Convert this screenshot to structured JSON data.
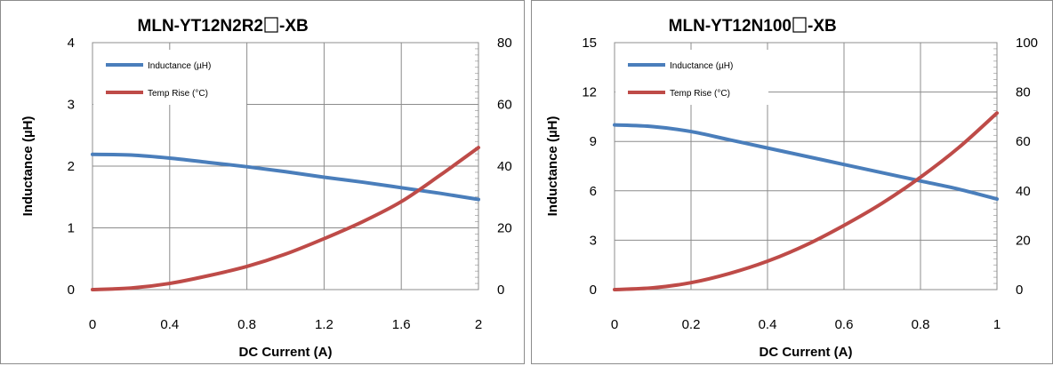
{
  "chart_data": [
    {
      "type": "line",
      "title_prefix": "MLN-YT12N2R2",
      "title_suffix": "-XB",
      "xlabel": "DC Current (A)",
      "ylabel": "Inductance (µH)",
      "xlim": [
        0,
        2
      ],
      "ylim": [
        0,
        4
      ],
      "y2lim": [
        0,
        80
      ],
      "x_ticks": [
        "0",
        "0.4",
        "0.8",
        "1.2",
        "1.6",
        "2"
      ],
      "y_ticks": [
        "0",
        "1",
        "2",
        "3",
        "4"
      ],
      "y2_ticks": [
        "0",
        "20",
        "40",
        "60",
        "80"
      ],
      "grid": true,
      "legend_position": "top-left",
      "series": [
        {
          "name": "Inductance (µH)",
          "axis": "left",
          "color": "#4a7ebb",
          "x": [
            0,
            0.2,
            0.4,
            0.6,
            0.8,
            1.0,
            1.2,
            1.4,
            1.6,
            1.8,
            2.0
          ],
          "y": [
            2.19,
            2.18,
            2.13,
            2.06,
            1.99,
            1.91,
            1.82,
            1.74,
            1.65,
            1.56,
            1.46
          ]
        },
        {
          "name": "Temp Rise (°C)",
          "axis": "right",
          "color": "#be4b48",
          "x": [
            0,
            0.2,
            0.4,
            0.6,
            0.8,
            1.0,
            1.2,
            1.4,
            1.6,
            1.8,
            2.0
          ],
          "y": [
            0,
            0.5,
            2,
            4.5,
            7.5,
            11.5,
            16.5,
            22,
            28.5,
            37,
            46
          ]
        }
      ]
    },
    {
      "type": "line",
      "title_prefix": "MLN-YT12N100",
      "title_suffix": "-XB",
      "xlabel": "DC Current (A)",
      "ylabel": "Inductance (µH)",
      "xlim": [
        0,
        1
      ],
      "ylim": [
        0,
        15
      ],
      "y2lim": [
        0,
        100
      ],
      "x_ticks": [
        "0",
        "0.2",
        "0.4",
        "0.6",
        "0.8",
        "1"
      ],
      "y_ticks": [
        "0",
        "3",
        "6",
        "9",
        "12",
        "15"
      ],
      "y2_ticks": [
        "0",
        "20",
        "40",
        "60",
        "80",
        "100"
      ],
      "grid": true,
      "legend_position": "top-left",
      "series": [
        {
          "name": "Inductance (µH)",
          "axis": "left",
          "color": "#4a7ebb",
          "x": [
            0,
            0.1,
            0.2,
            0.3,
            0.4,
            0.5,
            0.6,
            0.7,
            0.8,
            0.9,
            1.0
          ],
          "y": [
            10.0,
            9.9,
            9.6,
            9.1,
            8.6,
            8.1,
            7.6,
            7.1,
            6.6,
            6.1,
            5.5
          ]
        },
        {
          "name": "Temp Rise (°C)",
          "axis": "right",
          "color": "#be4b48",
          "x": [
            0,
            0.1,
            0.2,
            0.3,
            0.4,
            0.5,
            0.6,
            0.7,
            0.8,
            0.9,
            1.0
          ],
          "y": [
            0,
            0.7,
            2.8,
            6.5,
            11.5,
            18,
            26,
            35,
            45.5,
            57.5,
            71.5
          ]
        }
      ]
    }
  ]
}
